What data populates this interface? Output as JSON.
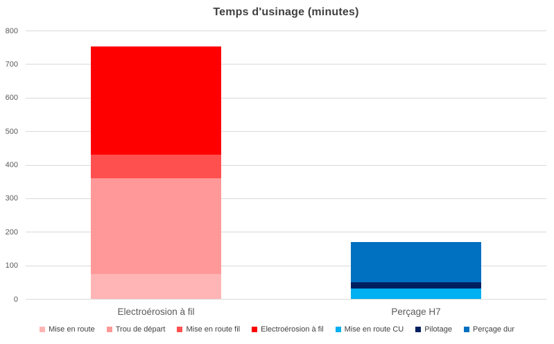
{
  "title": "Temps d'usinage (minutes)",
  "chart_data": {
    "type": "bar",
    "stacked": true,
    "title": "Temps d'usinage (minutes)",
    "xlabel": "",
    "ylabel": "",
    "categories": [
      "Electroérosion à fil",
      "Perçage H7"
    ],
    "series": [
      {
        "name": "Mise en route",
        "color": "#FFB5B5",
        "values": [
          75,
          0
        ]
      },
      {
        "name": "Trou de départ",
        "color": "#FF9999",
        "values": [
          285,
          0
        ]
      },
      {
        "name": "Mise en route fil",
        "color": "#FF5050",
        "values": [
          70,
          0
        ]
      },
      {
        "name": "Electroérosion à fil",
        "color": "#FF0000",
        "values": [
          322,
          0
        ]
      },
      {
        "name": "Mise en route CU",
        "color": "#00B0F0",
        "values": [
          0,
          30
        ]
      },
      {
        "name": "Pilotage",
        "color": "#002060",
        "values": [
          0,
          20
        ]
      },
      {
        "name": "Perçage dur",
        "color": "#0070C0",
        "values": [
          0,
          120
        ]
      }
    ],
    "category_totals": [
      752,
      170
    ],
    "ylim": [
      0,
      800
    ],
    "yticks": [
      0,
      100,
      200,
      300,
      400,
      500,
      600,
      700,
      800
    ],
    "grid": true,
    "legend_position": "bottom"
  },
  "colors": {
    "background": "#FFFFFF",
    "gridline": "#D9D9D9",
    "title_text": "#404040",
    "axis_text": "#595959",
    "legend_text": "#404040"
  }
}
